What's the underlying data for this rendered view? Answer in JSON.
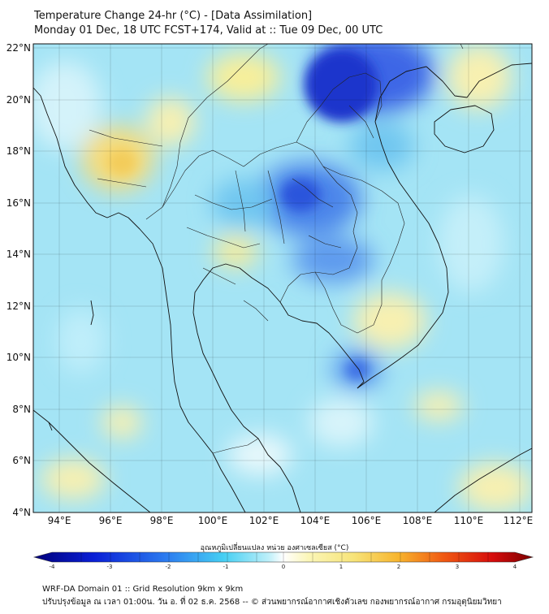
{
  "header": {
    "title_line1": "Temperature Change 24-hr (°C) - [Data Assimilation]",
    "title_line2": "Monday 01 Dec, 18 UTC FCST+174, Valid at :: Tue 09 Dec, 00 UTC"
  },
  "map": {
    "lat_labels": [
      "22°N",
      "20°N",
      "18°N",
      "16°N",
      "14°N",
      "12°N",
      "10°N",
      "8°N",
      "6°N",
      "4°N"
    ],
    "lon_labels": [
      "94°E",
      "96°E",
      "98°E",
      "100°E",
      "102°E",
      "104°E",
      "106°E",
      "108°E",
      "110°E",
      "112°E"
    ],
    "extent": {
      "lon_min": 93,
      "lon_max": 112.5,
      "lat_min": 4,
      "lat_max": 22.2
    },
    "field_colors": {
      "base": "#9fe3f4",
      "warm": "#f5e79a",
      "cold": "#2c4de0",
      "deep_cold": "#1530c8"
    }
  },
  "colorbar": {
    "title": "อุณหภูมิเปลี่ยนแปลง หน่วย องศาเซลเซียส (°C)",
    "ticks": [
      "-4",
      "-3",
      "-2",
      "-1",
      "0",
      "1",
      "2",
      "3",
      "4"
    ],
    "min": -4,
    "max": 4
  },
  "footer": {
    "line1": "WRF-DA Domain 01 :: Grid Resolution 9km x 9km",
    "line2": "ปรับปรุงข้อมูล ณ เวลา 01:00น. วัน อ. ที่ 02 ธ.ค. 2568 -- © ส่วนพยากรณ์อากาศเชิงตัวเลข กองพยากรณ์อากาศ กรมอุตุนิยมวิทยา"
  }
}
